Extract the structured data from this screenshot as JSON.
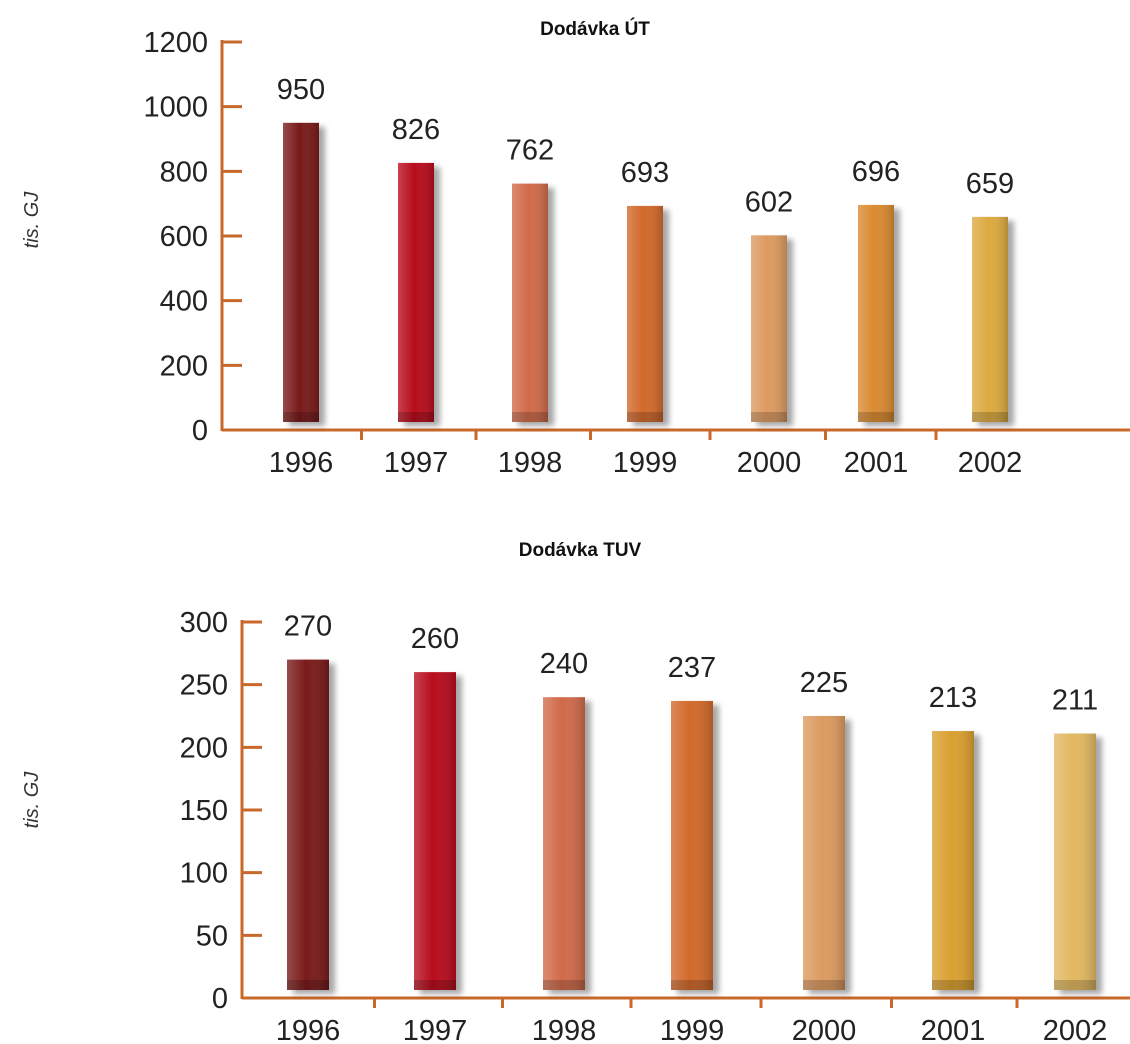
{
  "colors": {
    "axis": "#c8682a",
    "bars": [
      "#7a1a1a",
      "#b80c1c",
      "#d06a4a",
      "#d2692a",
      "#dc9a60",
      "#da8a30",
      "#dcaa40"
    ],
    "bars_tuv": [
      "#7a1a1a",
      "#b80c1c",
      "#d06a4a",
      "#d2692a",
      "#dc9a60",
      "#daa030",
      "#e2b860"
    ]
  },
  "chart_data": [
    {
      "type": "bar",
      "title": "Dodávka ÚT",
      "ylabel": "tis. GJ",
      "xlabel": "",
      "categories": [
        "1996",
        "1997",
        "1998",
        "1999",
        "2000",
        "2001",
        "2002"
      ],
      "values": [
        950,
        826,
        762,
        693,
        602,
        696,
        659
      ],
      "ylim": [
        0,
        1200
      ],
      "yticks": [
        "0",
        "200",
        "400",
        "600",
        "800",
        "1000",
        "1200"
      ],
      "value_labels": [
        "950",
        "826",
        "762",
        "693",
        "602",
        "696",
        "659"
      ],
      "grid": false
    },
    {
      "type": "bar",
      "title": "Dodávka TUV",
      "ylabel": "tis. GJ",
      "xlabel": "",
      "categories": [
        "1996",
        "1997",
        "1998",
        "1999",
        "2000",
        "2001",
        "2002"
      ],
      "values": [
        270,
        260,
        240,
        237,
        225,
        213,
        211
      ],
      "ylim": [
        0,
        300
      ],
      "yticks": [
        "0",
        "50",
        "100",
        "150",
        "200",
        "250",
        "300"
      ],
      "value_labels": [
        "270",
        "260",
        "240",
        "237",
        "225",
        "213",
        "211"
      ],
      "grid": false
    }
  ]
}
